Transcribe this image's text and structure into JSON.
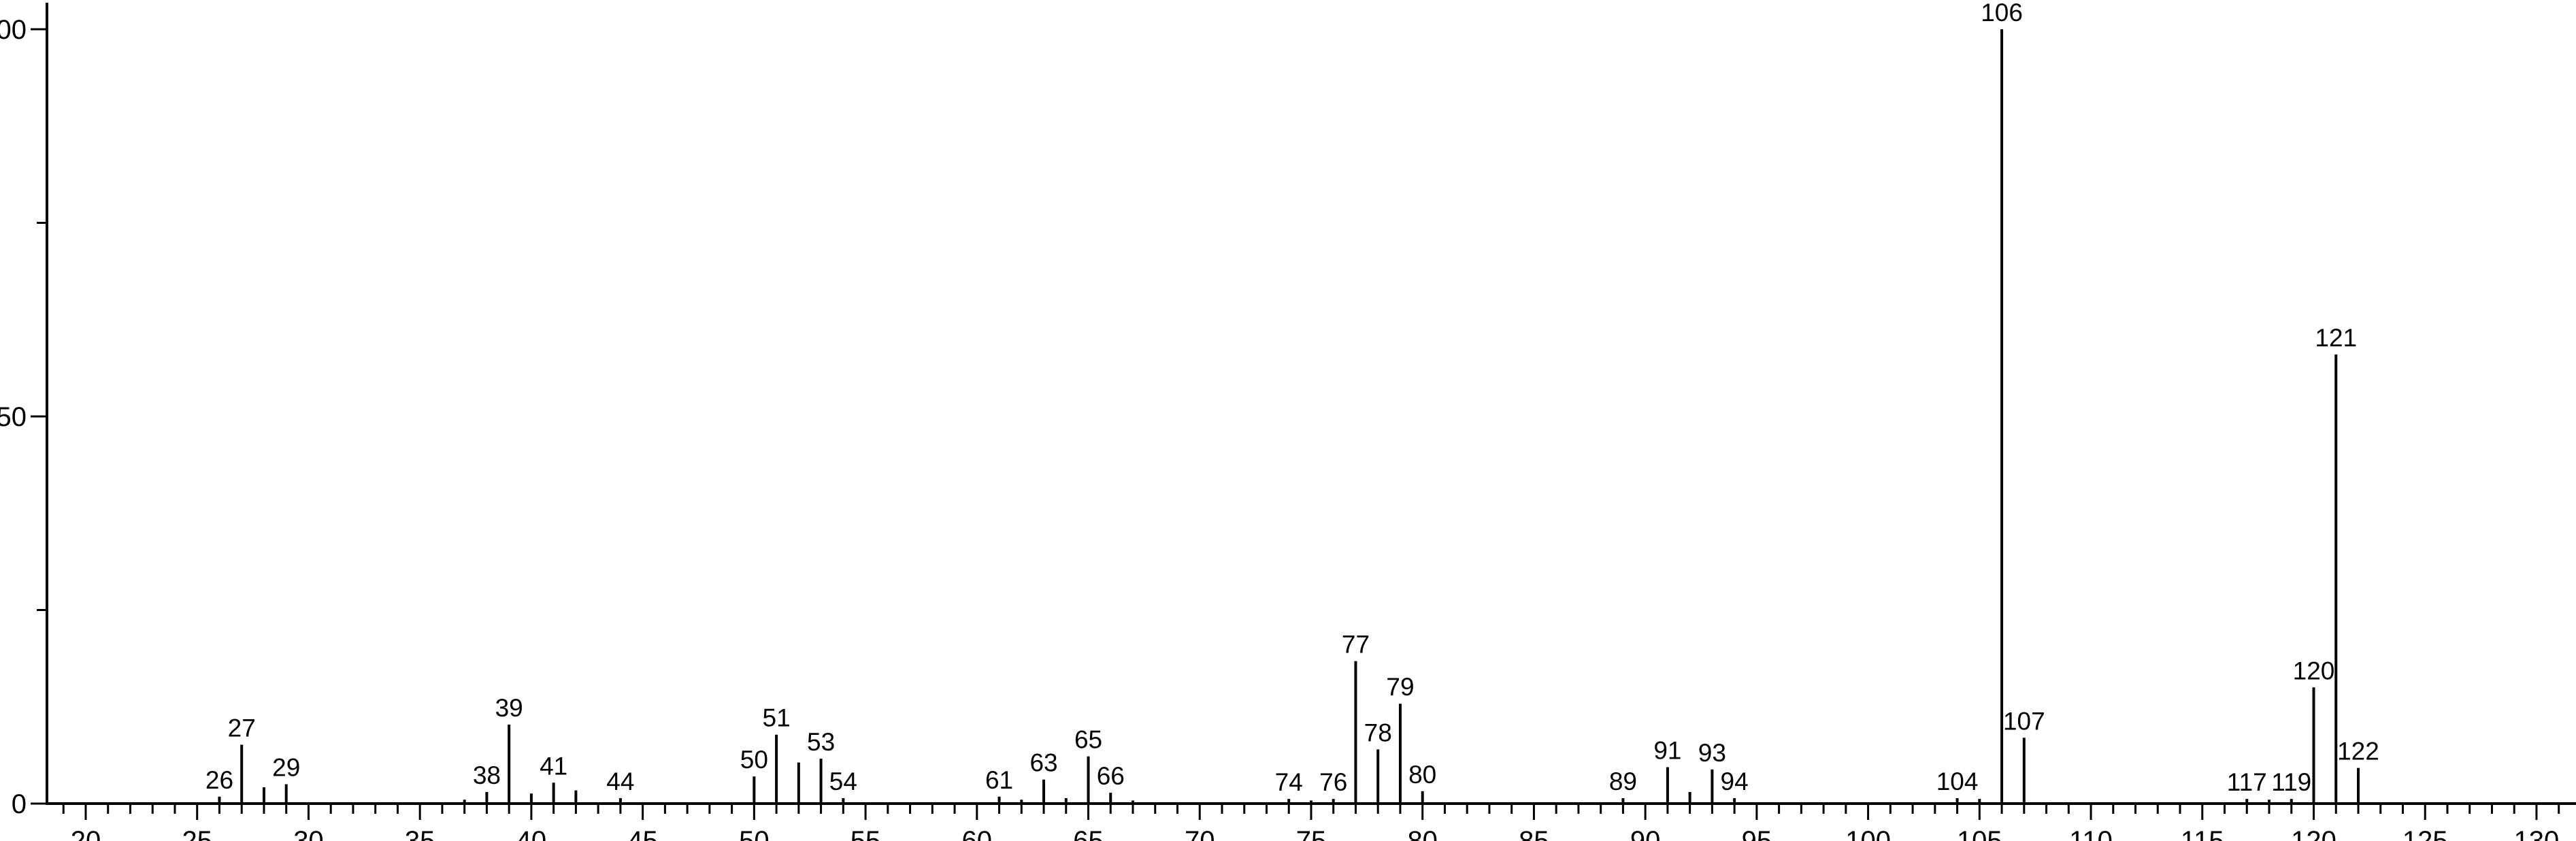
{
  "chart_data": {
    "type": "bar",
    "subtype": "mass-spectrum-stick-plot",
    "title": "",
    "xlabel": "",
    "ylabel": "",
    "background_color": "#ffffff",
    "ink_color": "#000000",
    "grid": false,
    "legend": false,
    "x_axis": {
      "min": 18.3,
      "max": 131.8,
      "minor_tick_step": 1,
      "major_tick_values": [
        20,
        25,
        30,
        35,
        40,
        45,
        50,
        55,
        60,
        65,
        70,
        75,
        80,
        85,
        90,
        95,
        100,
        105,
        110,
        115,
        120,
        125,
        130
      ],
      "major_tick_labels": [
        "20",
        "25",
        "30",
        "35",
        "40",
        "45",
        "50",
        "55",
        "60",
        "65",
        "70",
        "75",
        "80",
        "85",
        "90",
        "95",
        "100",
        "105",
        "110",
        "115",
        "120",
        "125",
        "130"
      ],
      "minor_tick_range": [
        19,
        131
      ]
    },
    "y_axis": {
      "min": 0,
      "max": 103.5,
      "major_tick_values": [
        0,
        50,
        100
      ],
      "major_tick_labels": [
        "0",
        "50",
        "100"
      ],
      "minor_tick_values": [
        25,
        75
      ]
    },
    "series_name": "relative intensity (%)",
    "peaks": [
      {
        "mz": 26,
        "intensity": 0.9,
        "labeled": true,
        "label": "26"
      },
      {
        "mz": 27,
        "intensity": 7.6,
        "labeled": true,
        "label": "27"
      },
      {
        "mz": 28,
        "intensity": 2.1,
        "labeled": false,
        "label": "28"
      },
      {
        "mz": 29,
        "intensity": 2.5,
        "labeled": true,
        "label": "29"
      },
      {
        "mz": 37,
        "intensity": 0.5,
        "labeled": false,
        "label": "37"
      },
      {
        "mz": 38,
        "intensity": 1.5,
        "labeled": true,
        "label": "38"
      },
      {
        "mz": 39,
        "intensity": 10.2,
        "labeled": true,
        "label": "39"
      },
      {
        "mz": 40,
        "intensity": 1.3,
        "labeled": false,
        "label": "40"
      },
      {
        "mz": 41,
        "intensity": 2.7,
        "labeled": true,
        "label": "41"
      },
      {
        "mz": 42,
        "intensity": 1.7,
        "labeled": false,
        "label": "42"
      },
      {
        "mz": 44,
        "intensity": 0.7,
        "labeled": true,
        "label": "44"
      },
      {
        "mz": 50,
        "intensity": 3.5,
        "labeled": true,
        "label": "50"
      },
      {
        "mz": 51,
        "intensity": 8.9,
        "labeled": true,
        "label": "51"
      },
      {
        "mz": 52,
        "intensity": 5.3,
        "labeled": false,
        "label": "52"
      },
      {
        "mz": 53,
        "intensity": 5.8,
        "labeled": true,
        "label": "53"
      },
      {
        "mz": 54,
        "intensity": 0.7,
        "labeled": true,
        "label": "54"
      },
      {
        "mz": 61,
        "intensity": 0.9,
        "labeled": true,
        "label": "61"
      },
      {
        "mz": 62,
        "intensity": 0.5,
        "labeled": false,
        "label": "62"
      },
      {
        "mz": 63,
        "intensity": 3.1,
        "labeled": true,
        "label": "63"
      },
      {
        "mz": 64,
        "intensity": 0.7,
        "labeled": false,
        "label": "64"
      },
      {
        "mz": 65,
        "intensity": 6.1,
        "labeled": true,
        "label": "65"
      },
      {
        "mz": 66,
        "intensity": 1.4,
        "labeled": true,
        "label": "66"
      },
      {
        "mz": 67,
        "intensity": 0.4,
        "labeled": false,
        "label": "67"
      },
      {
        "mz": 74,
        "intensity": 0.6,
        "labeled": true,
        "label": "74"
      },
      {
        "mz": 75,
        "intensity": 0.4,
        "labeled": false,
        "label": "75"
      },
      {
        "mz": 76,
        "intensity": 0.6,
        "labeled": true,
        "label": "76"
      },
      {
        "mz": 77,
        "intensity": 18.4,
        "labeled": true,
        "label": "77"
      },
      {
        "mz": 78,
        "intensity": 7.0,
        "labeled": true,
        "label": "78"
      },
      {
        "mz": 79,
        "intensity": 12.9,
        "labeled": true,
        "label": "79"
      },
      {
        "mz": 80,
        "intensity": 1.6,
        "labeled": true,
        "label": "80"
      },
      {
        "mz": 89,
        "intensity": 0.7,
        "labeled": true,
        "label": "89"
      },
      {
        "mz": 91,
        "intensity": 4.7,
        "labeled": true,
        "label": "91"
      },
      {
        "mz": 92,
        "intensity": 1.5,
        "labeled": false,
        "label": "92"
      },
      {
        "mz": 93,
        "intensity": 4.4,
        "labeled": true,
        "label": "93"
      },
      {
        "mz": 94,
        "intensity": 0.7,
        "labeled": true,
        "label": "94"
      },
      {
        "mz": 104,
        "intensity": 0.7,
        "labeled": true,
        "label": "104"
      },
      {
        "mz": 105,
        "intensity": 0.6,
        "labeled": false,
        "label": "105"
      },
      {
        "mz": 106,
        "intensity": 100.0,
        "labeled": true,
        "label": "106"
      },
      {
        "mz": 107,
        "intensity": 8.5,
        "labeled": true,
        "label": "107"
      },
      {
        "mz": 117,
        "intensity": 0.6,
        "labeled": true,
        "label": "117"
      },
      {
        "mz": 118,
        "intensity": 0.5,
        "labeled": false,
        "label": "118"
      },
      {
        "mz": 119,
        "intensity": 0.6,
        "labeled": true,
        "label": "119"
      },
      {
        "mz": 120,
        "intensity": 15.0,
        "labeled": true,
        "label": "120"
      },
      {
        "mz": 121,
        "intensity": 58.0,
        "labeled": true,
        "label": "121"
      },
      {
        "mz": 122,
        "intensity": 4.6,
        "labeled": true,
        "label": "122"
      }
    ]
  }
}
